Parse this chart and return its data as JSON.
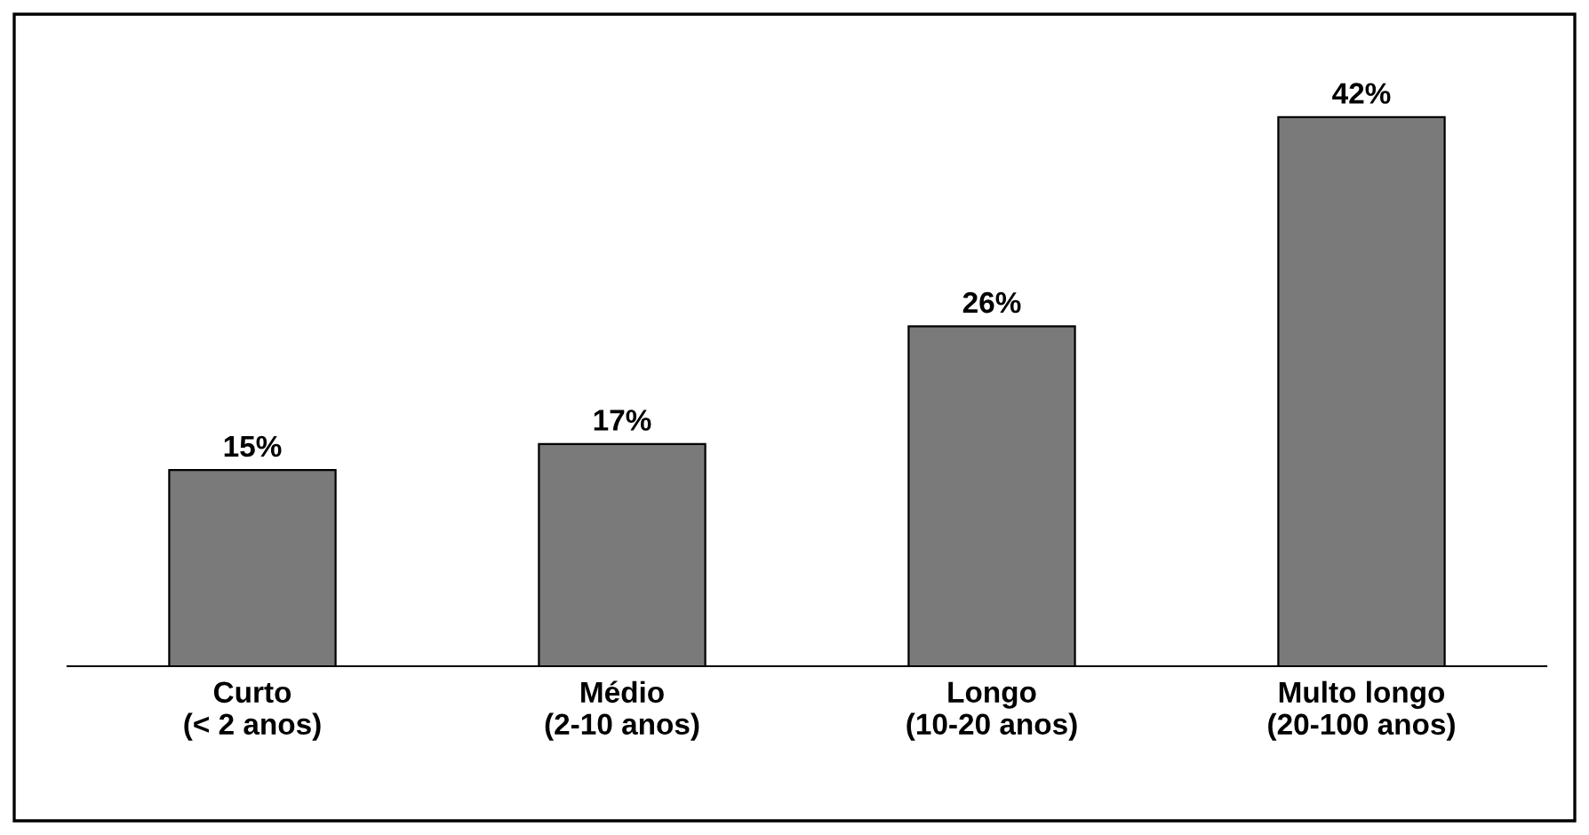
{
  "chart_data": {
    "type": "bar",
    "categories": [
      "Curto\n(< 2 anos)",
      "Médio\n(2-10 anos)",
      "Longo\n(10-20 anos)",
      "Multo longo\n(20-100 anos)"
    ],
    "values": [
      15,
      17,
      26,
      42
    ],
    "value_labels": [
      "15%",
      "17%",
      "26%",
      "42%"
    ],
    "color": "#7a7a7a",
    "grid": false,
    "legend": false
  }
}
